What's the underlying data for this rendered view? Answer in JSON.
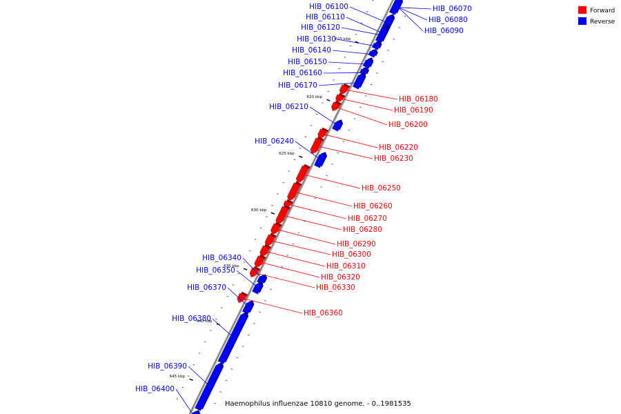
{
  "colors": {
    "forward": "#ff0000",
    "reverse": "#0000ff",
    "axis": "#888888",
    "text": "#000000"
  },
  "legend": [
    {
      "key": "forward",
      "label": "Forward"
    },
    {
      "key": "reverse",
      "label": "Reverse"
    }
  ],
  "caption": "Haemophilus influenzae 10810 genome. - 0..1981535",
  "scale_ticks": [
    "615 kbp",
    "620 kbp",
    "625 kbp",
    "630 kbp",
    "635 kbp",
    "640 kbp",
    "645 kbp"
  ],
  "genes": [
    {
      "id": "HIB_06070",
      "strand": "reverse"
    },
    {
      "id": "HIB_06080",
      "strand": "reverse"
    },
    {
      "id": "HIB_06090",
      "strand": "reverse"
    },
    {
      "id": "HIB_06100",
      "strand": "reverse"
    },
    {
      "id": "HIB_06110",
      "strand": "reverse"
    },
    {
      "id": "HIB_06120",
      "strand": "reverse"
    },
    {
      "id": "HIB_06130",
      "strand": "reverse"
    },
    {
      "id": "HIB_06140",
      "strand": "reverse"
    },
    {
      "id": "HIB_06150",
      "strand": "reverse"
    },
    {
      "id": "HIB_06160",
      "strand": "reverse"
    },
    {
      "id": "HIB_06170",
      "strand": "reverse"
    },
    {
      "id": "HIB_06180",
      "strand": "forward"
    },
    {
      "id": "HIB_06190",
      "strand": "forward"
    },
    {
      "id": "HIB_06200",
      "strand": "forward"
    },
    {
      "id": "HIB_06210",
      "strand": "reverse"
    },
    {
      "id": "HIB_06220",
      "strand": "forward"
    },
    {
      "id": "HIB_06230",
      "strand": "forward"
    },
    {
      "id": "HIB_06240",
      "strand": "reverse"
    },
    {
      "id": "HIB_06250",
      "strand": "forward"
    },
    {
      "id": "HIB_06260",
      "strand": "forward"
    },
    {
      "id": "HIB_06270",
      "strand": "forward"
    },
    {
      "id": "HIB_06280",
      "strand": "forward"
    },
    {
      "id": "HIB_06290",
      "strand": "forward"
    },
    {
      "id": "HIB_06300",
      "strand": "forward"
    },
    {
      "id": "HIB_06310",
      "strand": "forward"
    },
    {
      "id": "HIB_06320",
      "strand": "forward"
    },
    {
      "id": "HIB_06330",
      "strand": "forward"
    },
    {
      "id": "HIB_06340",
      "strand": "reverse"
    },
    {
      "id": "HIB_06350",
      "strand": "reverse"
    },
    {
      "id": "HIB_06360",
      "strand": "forward"
    },
    {
      "id": "HIB_06370",
      "strand": "reverse"
    },
    {
      "id": "HIB_06380",
      "strand": "reverse"
    },
    {
      "id": "HIB_06390",
      "strand": "reverse"
    },
    {
      "id": "HIB_06400",
      "strand": "reverse"
    }
  ]
}
